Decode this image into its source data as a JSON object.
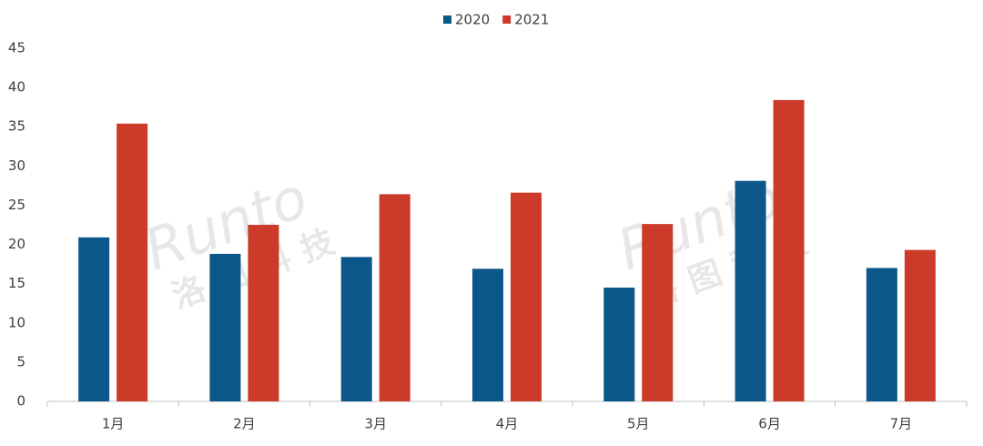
{
  "chart_data": {
    "type": "bar",
    "categories": [
      "1月",
      "2月",
      "3月",
      "4月",
      "5月",
      "6月",
      "7月"
    ],
    "series": [
      {
        "name": "2020",
        "color": "#0b5789",
        "values": [
          20.9,
          18.8,
          18.4,
          16.9,
          14.5,
          28.1,
          17.0
        ]
      },
      {
        "name": "2021",
        "color": "#cc3a2a",
        "values": [
          35.4,
          22.5,
          26.4,
          26.6,
          22.6,
          38.4,
          19.3
        ]
      }
    ],
    "ylim": [
      0,
      45
    ],
    "yticks": [
      0,
      5,
      10,
      15,
      20,
      25,
      30,
      35,
      40,
      45
    ],
    "grid": false,
    "legend": "top",
    "watermark": [
      "Runto",
      "洛图科技"
    ]
  }
}
